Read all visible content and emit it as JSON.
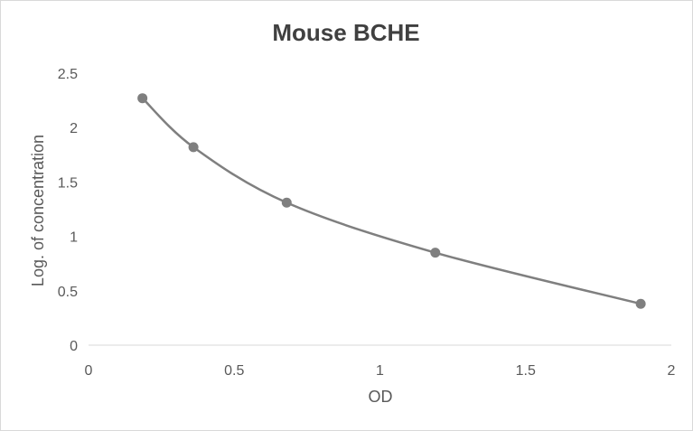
{
  "chart_data": {
    "type": "scatter",
    "title": "Mouse BCHE",
    "xlabel": "OD",
    "ylabel": "Log. of concentration",
    "xlim": [
      0,
      2
    ],
    "ylim": [
      0,
      2.5
    ],
    "x_ticks": [
      "0",
      "0.5",
      "1",
      "1.5",
      "2"
    ],
    "y_ticks": [
      "0",
      "0.5",
      "1",
      "1.5",
      "2",
      "2.5"
    ],
    "grid": false,
    "legend": "none",
    "smooth_line": true,
    "series": [
      {
        "x": [
          0.185,
          0.36,
          0.68,
          1.19,
          1.895
        ],
        "y": [
          2.27,
          1.82,
          1.31,
          0.85,
          0.38
        ]
      }
    ],
    "colors": {
      "series": "#7f7f7f",
      "axis": "#d9d9d9",
      "text": "#595959",
      "title": "#404040"
    }
  }
}
